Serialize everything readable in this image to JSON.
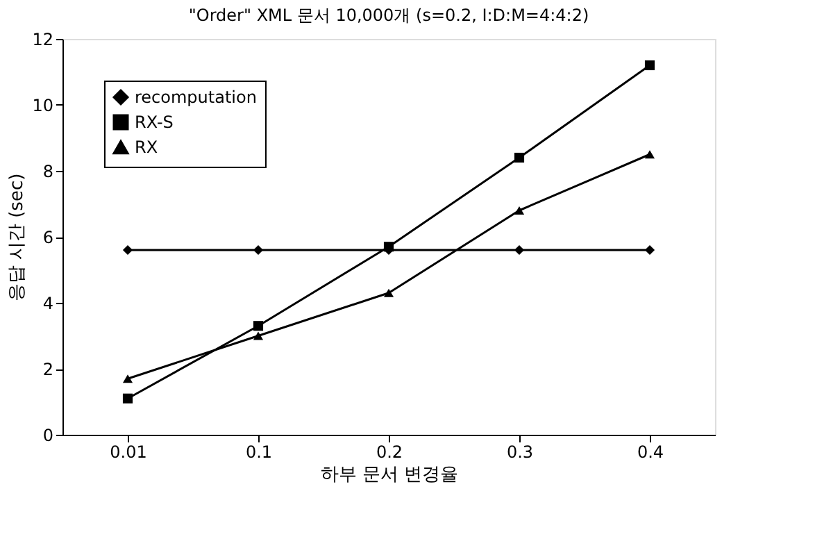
{
  "chart_data": {
    "type": "line",
    "title": "\"Order\" XML 문서 10,000개 (s=0.2, I:D:M=4:4:2)",
    "xlabel": "하부 문서 변경율",
    "ylabel": "응답 시간 (sec)",
    "categories": [
      "0.01",
      "0.1",
      "0.2",
      "0.3",
      "0.4"
    ],
    "series": [
      {
        "name": "recomputation",
        "color": "#000000",
        "marker": "diamond",
        "values": [
          5.6,
          5.6,
          5.6,
          5.6,
          5.6
        ]
      },
      {
        "name": "RX-S",
        "color": "#000000",
        "marker": "square",
        "values": [
          1.1,
          3.3,
          5.7,
          8.4,
          11.2
        ]
      },
      {
        "name": "RX",
        "color": "#000000",
        "marker": "triangle",
        "values": [
          1.7,
          3.0,
          4.3,
          6.8,
          8.5
        ]
      }
    ],
    "ylim": [
      0,
      12
    ],
    "yticks": [
      0,
      2,
      4,
      6,
      8,
      10,
      12
    ],
    "grid": false,
    "legend": "top left",
    "line_style": "solid"
  }
}
